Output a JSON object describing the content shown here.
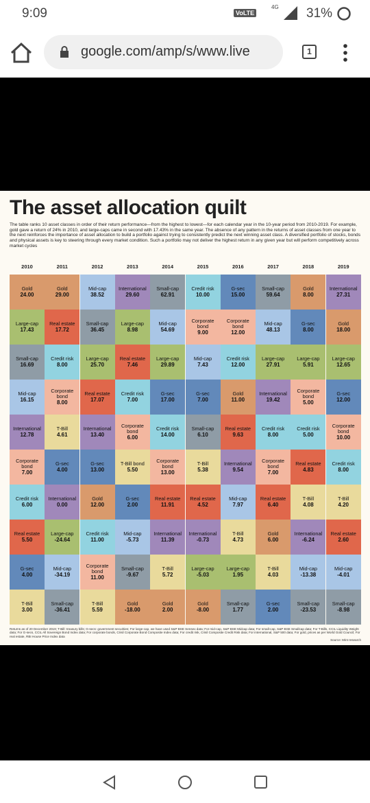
{
  "status_bar": {
    "time": "9:09",
    "volte": "VoLTE",
    "network": "4G",
    "battery": "31%"
  },
  "browser": {
    "url": "google.com/amp/s/www.live",
    "tab_count": "1"
  },
  "article": {
    "title": "The asset allocation quilt",
    "description": "The table ranks 10 asset classes in order of their return performance—from the highest to lowest—for each calendar year in the 10-year period from 2010-2019. For example, gold gave a return of 24% in 2010, and large-caps came in second with 17.43% in the same year. The absence of any pattern in the returns of asset classes from one year to the next reinforces the importance of asset allocation to build a portfolio against trying to consistently predict the next winning asset class. A diversified portfolio of stocks, bonds and physical assets is key to steering through every market condition. Such a portfolio may not deliver the highest return in any given year but will perform competitively across market cycles",
    "years": [
      "2010",
      "2011",
      "2012",
      "2013",
      "2014",
      "2015",
      "2016",
      "2017",
      "2018",
      "2019"
    ],
    "asset_colors": {
      "Gold": "#d99a6c",
      "Large-cap": "#a9bf70",
      "Small-cap": "#8f9ca6",
      "Mid-cap": "#a9c6e6",
      "International": "#a088ba",
      "Corporate bond": "#f3b7a0",
      "Credit risk": "#92d3e0",
      "Real estate": "#e0674b",
      "G-sec": "#6289ba",
      "T-Bill": "#e9da9c"
    },
    "columns": [
      [
        [
          "Gold",
          "24.00"
        ],
        [
          "Large-cap",
          "17.43"
        ],
        [
          "Small-cap",
          "16.69"
        ],
        [
          "Mid-cap",
          "16.15"
        ],
        [
          "International",
          "12.78"
        ],
        [
          "Corporate bond",
          "7.00"
        ],
        [
          "Credit risk",
          "6.00"
        ],
        [
          "Real estate",
          "5.50"
        ],
        [
          "G-sec",
          "4.00"
        ],
        [
          "T-Bill",
          "3.00"
        ]
      ],
      [
        [
          "Gold",
          "29.00"
        ],
        [
          "Real estate",
          "17.72"
        ],
        [
          "Credit risk",
          "8.00"
        ],
        [
          "Corporate bond",
          "8.00"
        ],
        [
          "T-Bill",
          "4.61"
        ],
        [
          "G-sec",
          "4.00"
        ],
        [
          "International",
          "0.00"
        ],
        [
          "Large-cap",
          "-24.64"
        ],
        [
          "Mid-cap",
          "-34.19"
        ],
        [
          "Small-cap",
          "-36.41"
        ]
      ],
      [
        [
          "Mid-cap",
          "38.52"
        ],
        [
          "Small-cap",
          "36.45"
        ],
        [
          "Large-cap",
          "25.70"
        ],
        [
          "Real estate",
          "17.07"
        ],
        [
          "International",
          "13.40"
        ],
        [
          "G-sec",
          "13.00"
        ],
        [
          "Gold",
          "12.00"
        ],
        [
          "Credit risk",
          "11.00"
        ],
        [
          "Corporate bond",
          "11.00"
        ],
        [
          "T-Bill",
          "5.59"
        ]
      ],
      [
        [
          "International",
          "29.60"
        ],
        [
          "Large-cap",
          "8.98"
        ],
        [
          "Real estate",
          "7.46"
        ],
        [
          "Credit risk",
          "7.00"
        ],
        [
          "Corporate bond",
          "6.00"
        ],
        [
          "T-Bill bond",
          "5.50"
        ],
        [
          "G-sec",
          "2.00"
        ],
        [
          "Mid-cap",
          "-5.73"
        ],
        [
          "Small-cap",
          "-9.67"
        ],
        [
          "Gold",
          "-18.00"
        ]
      ],
      [
        [
          "Small-cap",
          "62.91"
        ],
        [
          "Mid-cap",
          "54.69"
        ],
        [
          "Large-cap",
          "29.89"
        ],
        [
          "G-sec",
          "17.00"
        ],
        [
          "Credit risk",
          "14.00"
        ],
        [
          "Corporate bond",
          "13.00"
        ],
        [
          "Real estate",
          "11.91"
        ],
        [
          "International",
          "11.39"
        ],
        [
          "T-Bill",
          "5.72"
        ],
        [
          "Gold",
          "2.00"
        ]
      ],
      [
        [
          "Credit risk",
          "10.00"
        ],
        [
          "Corporate bond",
          "9.00"
        ],
        [
          "Mid-cap",
          "7.43"
        ],
        [
          "G-sec",
          "7.00"
        ],
        [
          "Small-cap",
          "6.10"
        ],
        [
          "T-Bill",
          "5.38"
        ],
        [
          "Real estate",
          "4.52"
        ],
        [
          "International",
          "-0.73"
        ],
        [
          "Large-cap",
          "-5.03"
        ],
        [
          "Gold",
          "-8.00"
        ]
      ],
      [
        [
          "G-sec",
          "15.00"
        ],
        [
          "Corporate bond",
          "12.00"
        ],
        [
          "Credit risk",
          "12.00"
        ],
        [
          "Gold",
          "11.00"
        ],
        [
          "Real estate",
          "9.63"
        ],
        [
          "International",
          "9.54"
        ],
        [
          "Mid-cap",
          "7.97"
        ],
        [
          "T-Bill",
          "4.73"
        ],
        [
          "Large-cap",
          "1.95"
        ],
        [
          "Small-cap",
          "1.77"
        ]
      ],
      [
        [
          "Small-cap",
          "59.64"
        ],
        [
          "Mid-cap",
          "48.13"
        ],
        [
          "Large-cap",
          "27.91"
        ],
        [
          "International",
          "19.42"
        ],
        [
          "Credit risk",
          "8.00"
        ],
        [
          "Corporate bond",
          "7.00"
        ],
        [
          "Real estate",
          "6.40"
        ],
        [
          "Gold",
          "6.00"
        ],
        [
          "T-Bill",
          "4.03"
        ],
        [
          "G-sec",
          "2.00"
        ]
      ],
      [
        [
          "Gold",
          "8.00"
        ],
        [
          "G-sec",
          "8.00"
        ],
        [
          "Large-cap",
          "5.91"
        ],
        [
          "Corporate bond",
          "5.00"
        ],
        [
          "Credit risk",
          "5.00"
        ],
        [
          "Real estate",
          "4.83"
        ],
        [
          "T-Bill",
          "4.08"
        ],
        [
          "International",
          "-6.24"
        ],
        [
          "Mid-cap",
          "-13.38"
        ],
        [
          "Small-cap",
          "-23.53"
        ]
      ],
      [
        [
          "International",
          "27.31"
        ],
        [
          "Gold",
          "18.00"
        ],
        [
          "Large-cap",
          "12.65"
        ],
        [
          "G-sec",
          "12.00"
        ],
        [
          "Corporate bond",
          "10.00"
        ],
        [
          "Credit risk",
          "8.00"
        ],
        [
          "T-Bill",
          "4.20"
        ],
        [
          "Real estate",
          "2.60"
        ],
        [
          "Mid-cap",
          "-4.01"
        ],
        [
          "Small-cap",
          "-8.98"
        ]
      ]
    ],
    "footnote": "Returns as of 20 December 2019; T-Bill: treasury bills; G-secs: government securities; For large-cap, we have used S&P BSE Sensex data; For mid-cap, S&P BSE Midcap data; For small-cap, S&P BSE Smallcap data; For T-Bills, CCIL Liquidity Weight data; For G-secs, CCIL All Sovereign Bond Index data; For corporate bonds, Crisil Corporate Bond Composite Index data; For credit risk, Crisil Composite Credit Risk data; For international, S&P 500 data; For gold, prices as per World Gold Council; For real estate, RBI House Price Index data",
    "source": "Source: Mint research"
  }
}
